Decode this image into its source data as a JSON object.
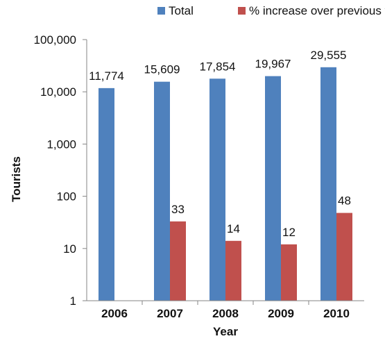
{
  "chart_data": {
    "type": "bar",
    "scale": "log",
    "title": "",
    "xlabel": "Year",
    "ylabel": "Tourists",
    "ylim": [
      1,
      100000
    ],
    "yticks": [
      1,
      10,
      100,
      1000,
      10000,
      100000
    ],
    "ytick_labels": [
      "1",
      "10",
      "100",
      "1,000",
      "10,000",
      "100,000"
    ],
    "grid": false,
    "legend_position": "top",
    "categories": [
      "2006",
      "2007",
      "2008",
      "2009",
      "2010"
    ],
    "series": [
      {
        "name": "Total",
        "color": "#4F81BD",
        "values": [
          11774,
          15609,
          17854,
          19967,
          29555
        ],
        "labels": [
          "11,774",
          "15,609",
          "17,854",
          "19,967",
          "29,555"
        ]
      },
      {
        "name": "% increase over previous year",
        "color": "#C0504D",
        "values": [
          null,
          33,
          14,
          12,
          48
        ],
        "labels": [
          "",
          "33",
          "14",
          "12",
          "48"
        ]
      }
    ]
  }
}
